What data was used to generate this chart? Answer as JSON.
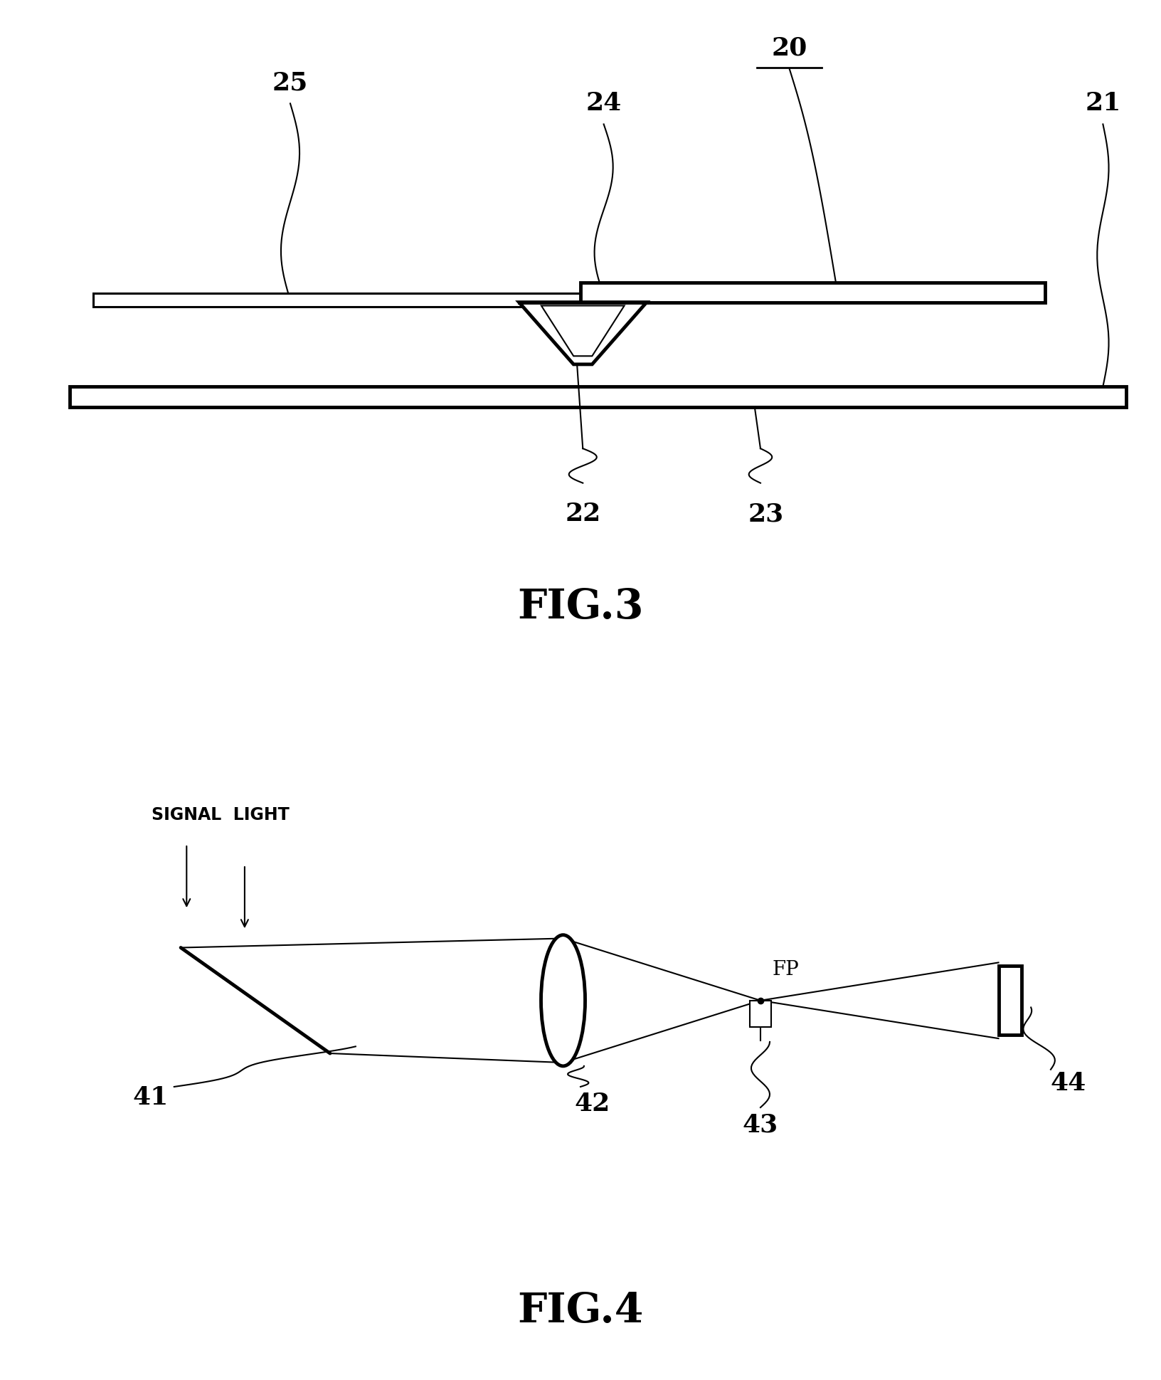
{
  "fig_width": 16.32,
  "fig_height": 19.39,
  "bg_color": "#ffffff",
  "fig3": {
    "title": "FIG.3",
    "label_20": "20",
    "label_21": "21",
    "label_22": "22",
    "label_23": "23",
    "label_24": "24",
    "label_25": "25"
  },
  "fig4": {
    "title": "FIG.4",
    "signal_light_label": "SIGNAL  LIGHT",
    "label_41": "41",
    "label_42": "42",
    "label_43": "43",
    "label_44": "44",
    "label_fp": "FP"
  }
}
